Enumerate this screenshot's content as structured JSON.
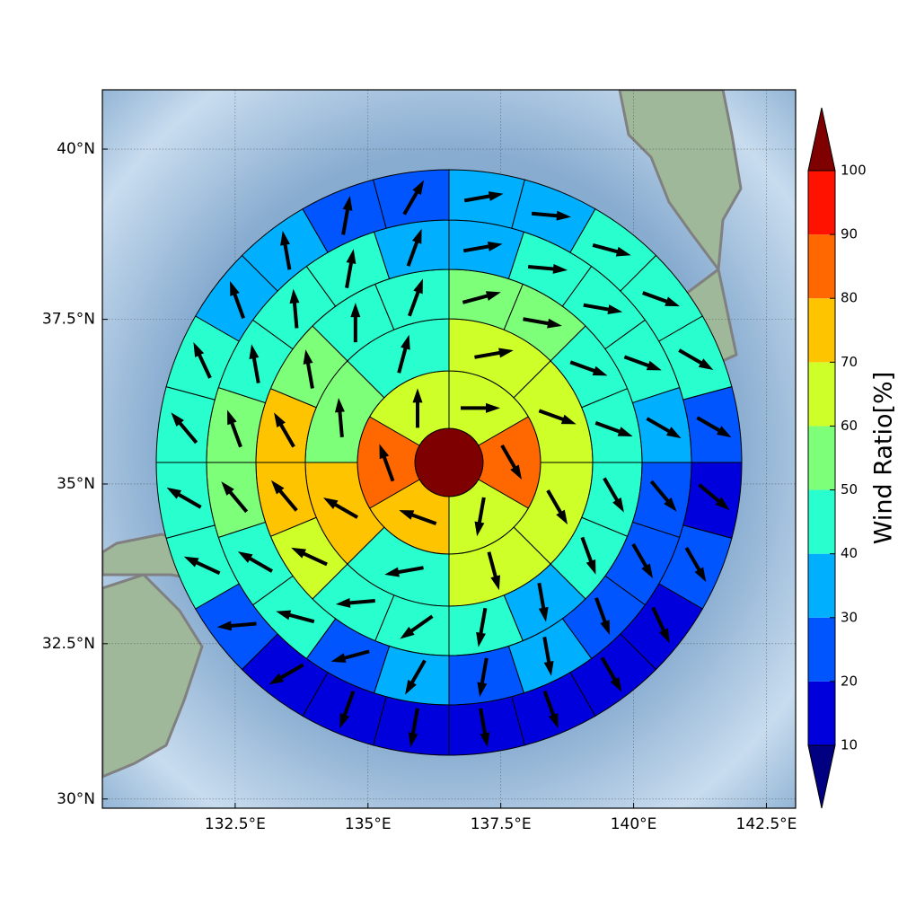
{
  "chart_data": {
    "type": "polar-sector-map",
    "xlim": [
      130.0,
      143.05
    ],
    "ylim": [
      29.85,
      40.85
    ],
    "xticks": [
      {
        "value": 132.5,
        "label": "132.5°E"
      },
      {
        "value": 135,
        "label": "135°E"
      },
      {
        "value": 137.5,
        "label": "137.5°E"
      },
      {
        "value": 140,
        "label": "140°E"
      },
      {
        "value": 142.5,
        "label": "142.5°E"
      }
    ],
    "yticks": [
      {
        "value": 30,
        "label": "30°N"
      },
      {
        "value": 32.5,
        "label": "32.5°N"
      },
      {
        "value": 35,
        "label": "35°N"
      },
      {
        "value": 37.5,
        "label": "37.5°N"
      },
      {
        "value": 40,
        "label": "40°N"
      }
    ],
    "grid": true,
    "rings": [
      {
        "values": [
          100
        ]
      },
      {
        "values": [
          65,
          85,
          65,
          75,
          85,
          65
        ],
        "directions": [
          90,
          150,
          190,
          290,
          340,
          0
        ]
      },
      {
        "values": [
          65,
          65,
          65,
          65,
          45,
          75,
          55,
          45
        ],
        "directions": [
          80,
          110,
          150,
          165,
          260,
          300,
          355,
          15
        ]
      },
      {
        "values": [
          55,
          55,
          45,
          45,
          45,
          45,
          35,
          45,
          45,
          45,
          65,
          75,
          75,
          55,
          45,
          45
        ],
        "directions": [
          75,
          100,
          110,
          110,
          150,
          160,
          170,
          190,
          235,
          265,
          295,
          320,
          330,
          350,
          0,
          20
        ]
      },
      {
        "values": [
          35,
          45,
          45,
          45,
          35,
          25,
          25,
          25,
          35,
          25,
          35,
          25,
          45,
          45,
          55,
          55,
          45,
          45,
          45,
          35
        ],
        "directions": [
          80,
          95,
          100,
          110,
          120,
          140,
          150,
          160,
          170,
          190,
          210,
          255,
          285,
          300,
          320,
          340,
          350,
          355,
          10,
          20
        ]
      },
      {
        "values": [
          35,
          35,
          45,
          45,
          45,
          25,
          15,
          25,
          15,
          15,
          15,
          15,
          15,
          15,
          15,
          25,
          45,
          45,
          45,
          45,
          35,
          35,
          25,
          25
        ],
        "directions": [
          80,
          95,
          105,
          110,
          120,
          120,
          130,
          150,
          155,
          150,
          160,
          170,
          190,
          200,
          240,
          265,
          295,
          300,
          320,
          335,
          340,
          350,
          10,
          30
        ]
      }
    ],
    "colorbar": {
      "label": "Wind Ratio[%]",
      "levels": [
        10,
        20,
        30,
        40,
        50,
        60,
        70,
        80,
        90,
        100
      ],
      "colors": [
        "#0000dd",
        "#0055ff",
        "#00b0ff",
        "#29ffce",
        "#7dff7a",
        "#ceff29",
        "#ffc400",
        "#ff6800",
        "#ff1300"
      ],
      "over_color": "#7f0000",
      "under_color": "#000080"
    }
  }
}
